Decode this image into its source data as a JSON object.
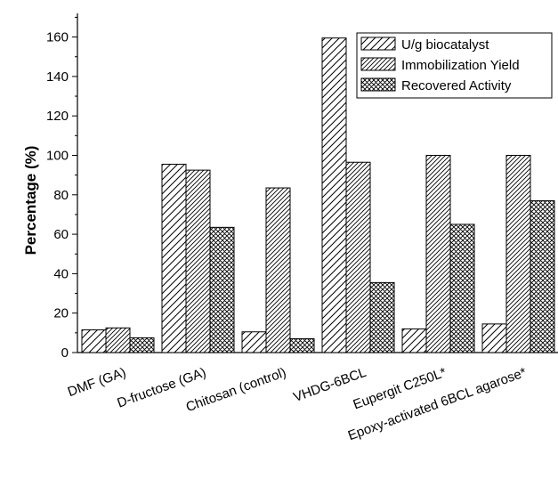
{
  "chart_data": {
    "type": "bar",
    "ylabel": "Percentage (%)",
    "xlabel": "",
    "ylim": [
      0,
      172
    ],
    "yticks": [
      0,
      20,
      40,
      60,
      80,
      100,
      120,
      140,
      160
    ],
    "grid": false,
    "legend_position": "top-right",
    "categories": [
      "DMF (GA)",
      "D-fructose (GA)",
      "Chitosan (control)",
      "VHDG-6BCL",
      "Eupergit C250L*",
      "Epoxy-activated 6BCL agarose*"
    ],
    "series": [
      {
        "name": "U/g biocatalyst",
        "pattern": "diagonal-hatch",
        "values": [
          11.5,
          95.5,
          10.5,
          159.5,
          12,
          14.5
        ]
      },
      {
        "name": "Immobilization Yield",
        "pattern": "dense-diagonal-hatch",
        "values": [
          12.5,
          92.5,
          83.5,
          96.5,
          100,
          100
        ]
      },
      {
        "name": "Recovered Activity",
        "pattern": "cross-hatch",
        "values": [
          7.5,
          63.5,
          7,
          35.5,
          65,
          77
        ]
      }
    ]
  }
}
